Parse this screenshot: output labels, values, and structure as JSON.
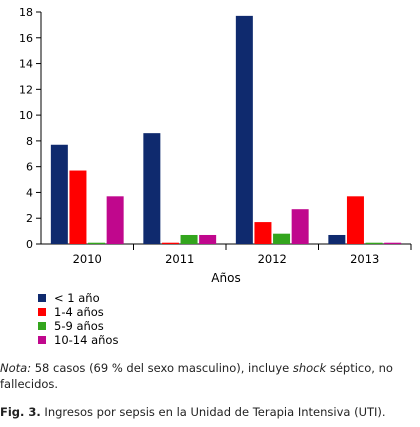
{
  "chart_data": {
    "type": "bar",
    "categories": [
      "2010",
      "2011",
      "2012",
      "2013"
    ],
    "series": [
      {
        "name": "< 1 año",
        "color": "#0f2a6e",
        "values": [
          7.7,
          8.6,
          17.7,
          0.7
        ]
      },
      {
        "name": "1-4 años",
        "color": "#ff0000",
        "values": [
          5.7,
          0.1,
          1.7,
          3.7
        ]
      },
      {
        "name": "5-9 años",
        "color": "#33a51d",
        "values": [
          0.1,
          0.7,
          0.8,
          0.1
        ]
      },
      {
        "name": "10-14 años",
        "color": "#c0078d",
        "values": [
          3.7,
          0.7,
          2.7,
          0.1
        ]
      }
    ],
    "xlabel": "Años",
    "ylabel": "",
    "ylim": [
      0,
      18
    ],
    "yticks": [
      0,
      2,
      4,
      6,
      8,
      10,
      12,
      14,
      16,
      18
    ],
    "grid": false,
    "legend_position": "bottom-left"
  },
  "note": {
    "prefix": "Nota:",
    "text_before": " 58 casos (69 % del sexo masculino), incluye ",
    "emphasis": "shock",
    "text_after": " séptico, no fallecidos."
  },
  "caption": {
    "label": "Fig. 3.",
    "text": " Ingresos por sepsis en la Unidad de Terapia Intensiva (UTI)."
  }
}
